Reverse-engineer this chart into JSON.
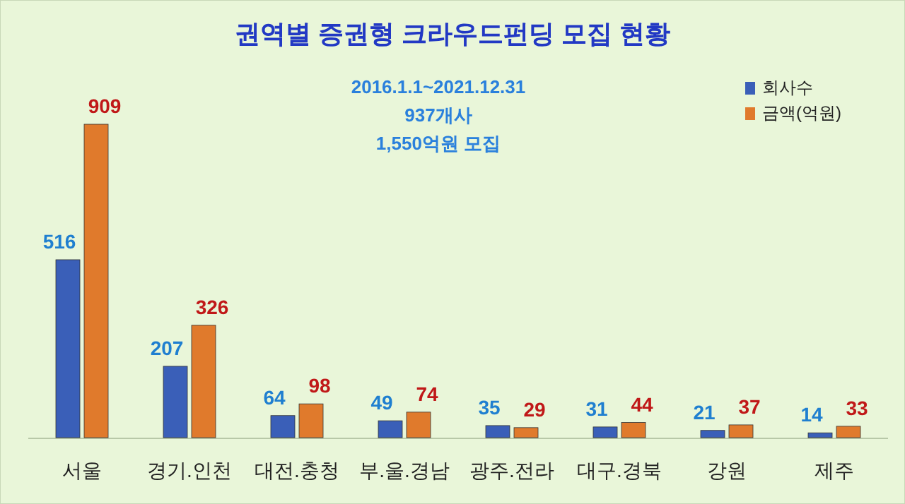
{
  "chart_data": {
    "type": "bar",
    "title": "권역별 증권형 크라우드펀딩 모집 현황",
    "annotations": [
      "2016.1.1~2021.12.31",
      "937개사",
      "1,550억원 모집"
    ],
    "categories": [
      "서울",
      "경기.인천",
      "대전.충청",
      "부.울.경남",
      "광주.전라",
      "대구.경북",
      "강원",
      "제주"
    ],
    "series": [
      {
        "name": "회사수",
        "color": "#3a5fb8",
        "values": [
          516,
          207,
          64,
          49,
          35,
          31,
          21,
          14
        ]
      },
      {
        "name": "금액(억원)",
        "color": "#e07a2c",
        "values": [
          909,
          326,
          98,
          74,
          29,
          44,
          37,
          33
        ]
      }
    ],
    "data_labels": true,
    "legend": "top right",
    "grid": false
  }
}
